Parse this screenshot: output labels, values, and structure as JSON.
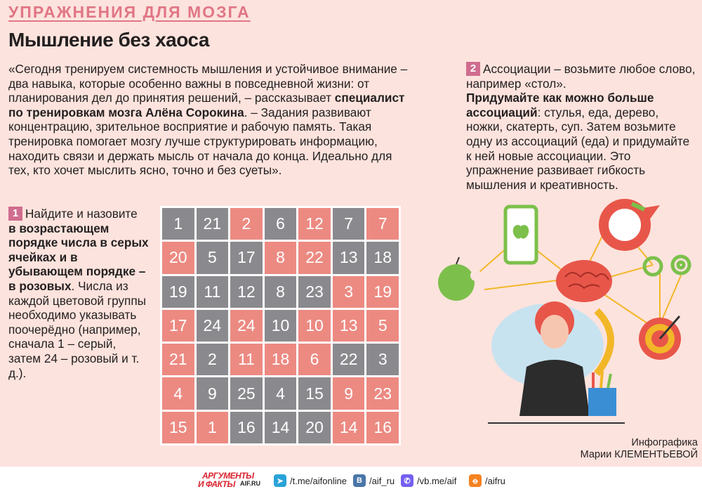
{
  "rubric": "УПРАЖНЕНИЯ ДЛЯ МОЗГА",
  "headline": "Мышление без хаоса",
  "intro": {
    "part1": "«Сегодня тренируем системность мышления и устойчивое внимание – два навыка, которые особенно важны в повседневной жизни: от планирования дел до принятия решений, – рассказывает ",
    "expert": "специалист по тренировкам мозга Алёна Сорокина",
    "part2": ". – Задания развивают концентрацию, зрительное восприятие и рабочую память. Такая тренировка помогает мозгу лучше структурировать информацию, находить связи и держать мысль от начала до конца. Идеально для тех, кто хочет мыслить ясно, точно и без суеты»."
  },
  "task1": {
    "number": "1",
    "line1": "Найдите и назовите",
    "bold": "в возрастающем порядке числа в серых ячейках и в убывающем порядке – в розовых",
    "rest": ". Числа из каждой цветовой группы необходимо указывать поочерёдно (например, сначала 1 – серый, затем  24 – розовый и т. д.)."
  },
  "task2": {
    "number": "2",
    "intro": "Ассоциации – возьмите любое слово, например «стол».",
    "bold": "Придумайте как можно больше ассоциаций",
    "rest": ": стулья, еда, дерево, ножки, скатерть, суп. Затем возьмите одну из ассоциаций (еда) и придумайте к ней новые ассоциации. Это упражнение развивает гибкость мышления и креативность."
  },
  "grid": {
    "colors": {
      "gray": "#8a8a8e",
      "pink": "#ec8a82"
    },
    "rows": [
      [
        {
          "n": "1",
          "c": "g"
        },
        {
          "n": "21",
          "c": "g"
        },
        {
          "n": "2",
          "c": "p"
        },
        {
          "n": "6",
          "c": "g"
        },
        {
          "n": "12",
          "c": "p"
        },
        {
          "n": "7",
          "c": "g"
        },
        {
          "n": "7",
          "c": "p"
        }
      ],
      [
        {
          "n": "20",
          "c": "p"
        },
        {
          "n": "5",
          "c": "g"
        },
        {
          "n": "17",
          "c": "g"
        },
        {
          "n": "8",
          "c": "p"
        },
        {
          "n": "22",
          "c": "p"
        },
        {
          "n": "13",
          "c": "g"
        },
        {
          "n": "18",
          "c": "g"
        }
      ],
      [
        {
          "n": "19",
          "c": "g"
        },
        {
          "n": "11",
          "c": "g"
        },
        {
          "n": "12",
          "c": "g"
        },
        {
          "n": "8",
          "c": "g"
        },
        {
          "n": "23",
          "c": "g"
        },
        {
          "n": "3",
          "c": "p"
        },
        {
          "n": "19",
          "c": "p"
        }
      ],
      [
        {
          "n": "17",
          "c": "p"
        },
        {
          "n": "24",
          "c": "g"
        },
        {
          "n": "24",
          "c": "p"
        },
        {
          "n": "10",
          "c": "g"
        },
        {
          "n": "10",
          "c": "p"
        },
        {
          "n": "13",
          "c": "p"
        },
        {
          "n": "5",
          "c": "p"
        }
      ],
      [
        {
          "n": "21",
          "c": "p"
        },
        {
          "n": "2",
          "c": "g"
        },
        {
          "n": "11",
          "c": "p"
        },
        {
          "n": "18",
          "c": "p"
        },
        {
          "n": "6",
          "c": "p"
        },
        {
          "n": "22",
          "c": "g"
        },
        {
          "n": "3",
          "c": "g"
        }
      ],
      [
        {
          "n": "4",
          "c": "p"
        },
        {
          "n": "9",
          "c": "g"
        },
        {
          "n": "25",
          "c": "g"
        },
        {
          "n": "4",
          "c": "g"
        },
        {
          "n": "15",
          "c": "g"
        },
        {
          "n": "9",
          "c": "p"
        },
        {
          "n": "23",
          "c": "p"
        }
      ],
      [
        {
          "n": "15",
          "c": "p"
        },
        {
          "n": "1",
          "c": "p"
        },
        {
          "n": "16",
          "c": "g"
        },
        {
          "n": "14",
          "c": "g"
        },
        {
          "n": "20",
          "c": "g"
        },
        {
          "n": "14",
          "c": "p"
        },
        {
          "n": "16",
          "c": "p"
        }
      ]
    ]
  },
  "credit": {
    "line1": "Инфографика",
    "line2": "Марии КЛЕМЕНТЬЕВОЙ"
  },
  "footer": {
    "logo_line1": "АРГУМЕНТЫ",
    "logo_line2": "И ФАКТЫ",
    "logo_site": "AIF.RU",
    "telegram": "/t.me/aifonline",
    "vk": "/aif_ru",
    "viber": "/vb.me/aif",
    "ok": "/aifru",
    "icons": [
      "telegram-icon",
      "vk-icon",
      "viber-icon",
      "odnoklassniki-icon"
    ]
  }
}
